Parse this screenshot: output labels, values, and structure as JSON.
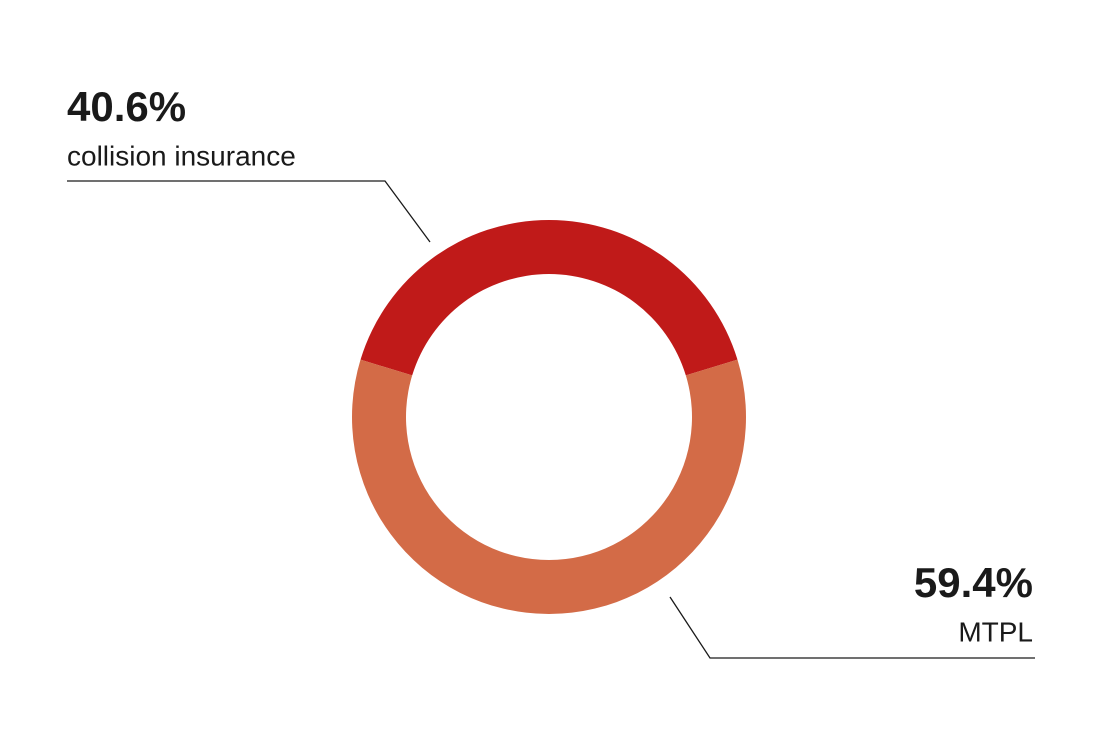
{
  "chart_data": {
    "type": "donut",
    "categories": [
      "collision insurance",
      "MTPL"
    ],
    "values": [
      40.6,
      59.4
    ],
    "value_labels": [
      "40.6%",
      "59.4%"
    ],
    "colors": [
      "#c01a19",
      "#d36b47"
    ]
  }
}
